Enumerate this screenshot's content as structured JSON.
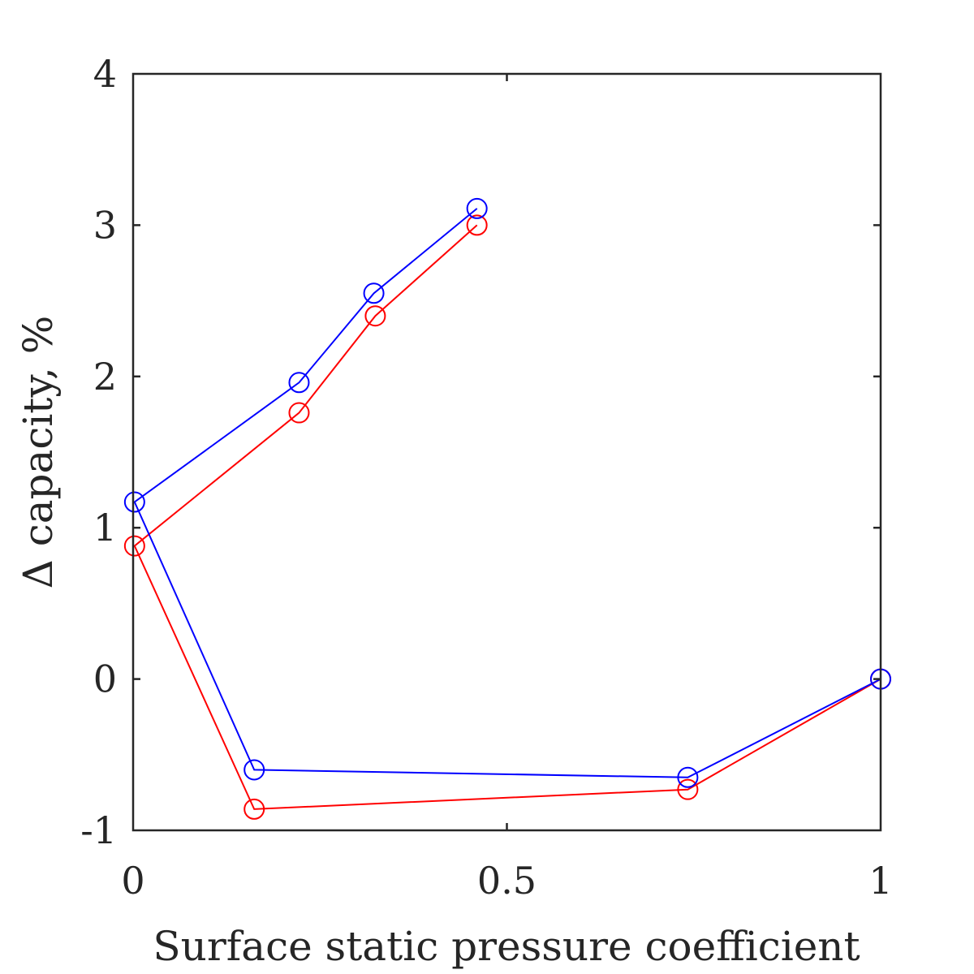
{
  "chart_data": {
    "type": "line",
    "title": "",
    "xlabel": "Surface static pressure coefficient",
    "ylabel": "Δ  capacity, %",
    "xlim": [
      0,
      1
    ],
    "ylim": [
      -1,
      4
    ],
    "x_ticks": [
      0,
      0.5,
      1
    ],
    "x_tick_labels": [
      "0",
      "0.5",
      "1"
    ],
    "y_ticks": [
      -1,
      0,
      1,
      2,
      3,
      4
    ],
    "y_tick_labels": [
      "-1",
      "0",
      "1",
      "2",
      "3",
      "4"
    ],
    "grid": false,
    "legend": "none",
    "series": [
      {
        "color": "#ff0000",
        "marker": "circle",
        "points": [
          [
            0.46,
            3.0
          ],
          [
            0.324,
            2.4
          ],
          [
            0.222,
            1.76
          ],
          [
            0.002,
            0.88
          ],
          [
            0.162,
            -0.86
          ],
          [
            0.742,
            -0.73
          ],
          [
            1.0,
            0.0
          ]
        ]
      },
      {
        "color": "#0000ff",
        "marker": "circle",
        "points": [
          [
            0.46,
            3.11
          ],
          [
            0.322,
            2.55
          ],
          [
            0.222,
            1.96
          ],
          [
            0.002,
            1.17
          ],
          [
            0.162,
            -0.6
          ],
          [
            0.742,
            -0.65
          ],
          [
            1.0,
            0.0
          ]
        ]
      }
    ]
  }
}
